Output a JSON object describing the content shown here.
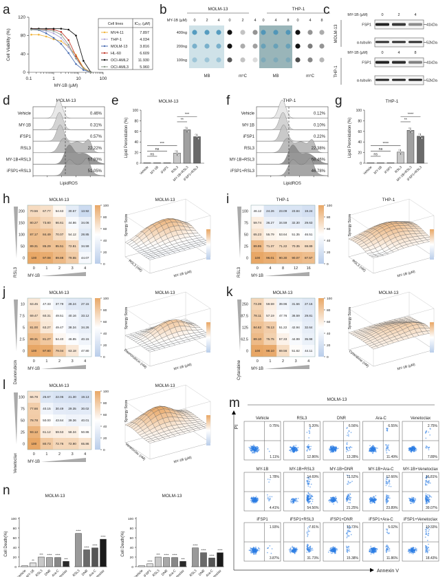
{
  "panel_letters": {
    "a": "a",
    "b": "b",
    "c": "c",
    "d": "d",
    "e": "e",
    "f": "f",
    "g": "g",
    "h": "h",
    "i": "i",
    "j": "j",
    "k": "k",
    "l": "l",
    "m": "m",
    "n": "n"
  },
  "chart_data": [
    {
      "type": "line",
      "panel": "a",
      "xlabel": "MY-1B (µM)",
      "ylabel": "Cell Viability (%)",
      "xscale": "log",
      "xlim": [
        0.1,
        100
      ],
      "ylim": [
        0,
        120
      ],
      "xticks": [
        "0.1",
        "1",
        "10",
        "100"
      ],
      "yticks": [
        "0",
        "40",
        "80",
        "120"
      ],
      "x": [
        0.125,
        0.25,
        0.5,
        1,
        2,
        4,
        8,
        16,
        32
      ],
      "legend": {
        "placement": "right",
        "headers": [
          "Cell lines",
          "IC₅₀ (µM)"
        ]
      },
      "series": [
        {
          "name": "MV4-11",
          "ic50": "7.897",
          "color": "#f0b43c",
          "values": [
            82,
            82,
            78,
            72,
            68,
            55,
            38,
            10,
            0
          ]
        },
        {
          "name": "THP-1",
          "ic50": "4.034",
          "color": "#b3aad8",
          "values": [
            95,
            93,
            90,
            85,
            75,
            55,
            30,
            8,
            0
          ]
        },
        {
          "name": "MOLM-13",
          "ic50": "3.816",
          "color": "#4b6fb3",
          "values": [
            93,
            92,
            85,
            75,
            62,
            42,
            18,
            5,
            0
          ]
        },
        {
          "name": "HL-60",
          "ic50": "6.609",
          "color": "#c0392b",
          "values": [
            95,
            95,
            94,
            93,
            88,
            70,
            35,
            8,
            0
          ]
        },
        {
          "name": "OCI-AML2",
          "ic50": "11.930",
          "color": "#111111",
          "values": [
            95,
            95,
            95,
            95,
            95,
            93,
            80,
            25,
            0
          ]
        },
        {
          "name": "OCI-AML3",
          "ic50": "5.960",
          "color": "#8a9a8a",
          "values": [
            93,
            93,
            92,
            90,
            82,
            60,
            30,
            8,
            0
          ]
        }
      ]
    },
    {
      "type": "bar",
      "panel": "e",
      "title": "MOLM-13",
      "ylabel": "Lipid Peroxidation (%)",
      "ylim": [
        0,
        100
      ],
      "yticks": [
        "0",
        "20",
        "40",
        "60",
        "80",
        "100"
      ],
      "categories": [
        "Vehicle",
        "MY-1B",
        "iFSP1",
        "RSL3",
        "MY-1B+RSL3",
        "iFSP1+RSL3"
      ],
      "values": [
        1,
        1,
        1,
        19,
        63,
        50
      ],
      "colors": [
        "#eeeeee",
        "#dddddd",
        "#cccccc",
        "#c8c8c8",
        "#a0a0a0",
        "#6a6a6a"
      ],
      "significance": [
        {
          "from": 0,
          "to": 1,
          "label": "ns"
        },
        {
          "from": 0,
          "to": 2,
          "label": "ns"
        },
        {
          "from": 0,
          "to": 3,
          "label": "***"
        },
        {
          "from": 3,
          "to": 4,
          "label": "**"
        },
        {
          "from": 3,
          "to": 5,
          "label": "***"
        }
      ]
    },
    {
      "type": "bar",
      "panel": "g",
      "title": "THP-1",
      "ylabel": "Lipid Peroxidation (%)",
      "ylim": [
        0,
        100
      ],
      "yticks": [
        "0",
        "20",
        "40",
        "60",
        "80",
        "100"
      ],
      "categories": [
        "Vehicle",
        "MY-1B",
        "iFSP1",
        "RSL3",
        "MY-1B+RSL3",
        "iFSP1+RSL3"
      ],
      "values": [
        1,
        1,
        1,
        21,
        62,
        51
      ],
      "colors": [
        "#eeeeee",
        "#dddddd",
        "#cccccc",
        "#c8c8c8",
        "#a0a0a0",
        "#6a6a6a"
      ],
      "significance": [
        {
          "from": 0,
          "to": 1,
          "label": "ns"
        },
        {
          "from": 0,
          "to": 2,
          "label": "ns"
        },
        {
          "from": 0,
          "to": 3,
          "label": "****"
        },
        {
          "from": 3,
          "to": 4,
          "label": "**"
        },
        {
          "from": 3,
          "to": 5,
          "label": "****"
        }
      ]
    },
    {
      "type": "heatmap",
      "panel": "h",
      "title": "MOLM-13",
      "xlabel": "MY-1B",
      "ylabel": "RSL3",
      "x": [
        "0",
        "1",
        "2",
        "3",
        "4"
      ],
      "y": [
        "200",
        "150",
        "100",
        "50",
        "0"
      ],
      "values": [
        [
          "70.56",
          "67.77",
          "54.63",
          "30.57",
          "13.92"
        ],
        [
          "80.27",
          "73.80",
          "66.61",
          "44.86",
          "34.06"
        ],
        [
          "87.17",
          "84.49",
          "70.07",
          "54.12",
          "28.85"
        ],
        [
          "89.31",
          "85.29",
          "85.51",
          "72.81",
          "34.59"
        ],
        [
          "100",
          "97.08",
          "89.88",
          "79.55",
          "44.07"
        ]
      ],
      "colorbar_ticks": [
        "0",
        "20",
        "40",
        "60",
        "80",
        "100"
      ],
      "surface": {
        "title": "MOLM-13",
        "zlabel": "Synergy Score",
        "xlabel": "MY-1B (µM)",
        "ylabel": "RSL3 (nM)"
      }
    },
    {
      "type": "heatmap",
      "panel": "i",
      "title": "THP-1",
      "xlabel": "MY-1B",
      "ylabel": "RSL3",
      "x": [
        "0",
        "4",
        "8",
        "12",
        "16"
      ],
      "y": [
        "100",
        "75",
        "50",
        "25",
        "0"
      ],
      "values": [
        [
          "46.12",
          "24.26",
          "23.09",
          "23.84",
          "19.24"
        ],
        [
          "59.74",
          "36.27",
          "34.59",
          "32.30",
          "29.63"
        ],
        [
          "65.23",
          "55.79",
          "53.64",
          "51.35",
          "46.51"
        ],
        [
          "89.95",
          "71.37",
          "71.22",
          "70.35",
          "69.89"
        ],
        [
          "100",
          "96.01",
          "90.30",
          "90.07",
          "87.57"
        ]
      ],
      "colorbar_ticks": [
        "0",
        "20",
        "40",
        "60",
        "80",
        "100"
      ],
      "surface": {
        "title": "THP-1",
        "zlabel": "Synergy Score",
        "xlabel": "MY-1B (µM)",
        "ylabel": "RSL3 (nM)"
      }
    },
    {
      "type": "heatmap",
      "panel": "j",
      "title": "MOLM-13",
      "xlabel": "MY-1B",
      "ylabel": "Daunorubicin",
      "x": [
        "0",
        "1",
        "2",
        "3",
        "4"
      ],
      "y": [
        "10",
        "7.5",
        "5",
        "2.5",
        "0"
      ],
      "values": [
        [
          "63.45",
          "47.33",
          "37.79",
          "28.24",
          "27.15"
        ],
        [
          "69.47",
          "60.31",
          "49.51",
          "40.16",
          "33.12"
        ],
        [
          "81.00",
          "63.27",
          "49.47",
          "38.34",
          "34.26"
        ],
        [
          "89.31",
          "81.27",
          "54.40",
          "46.85",
          "40.15"
        ],
        [
          "100",
          "97.80",
          "79.04",
          "63.18",
          "47.80"
        ]
      ],
      "colorbar_ticks": [
        "0",
        "20",
        "40",
        "60",
        "80",
        "100"
      ],
      "surface": {
        "title": "MOLM-13",
        "zlabel": "Synergy Score",
        "xlabel": "MY-1B (µM)",
        "ylabel": "Daunorubicin (nM)"
      }
    },
    {
      "type": "heatmap",
      "panel": "k",
      "title": "MOLM-13",
      "xlabel": "MY-1B",
      "ylabel": "Cytarabine",
      "x": [
        "0",
        "1",
        "2",
        "3",
        "4"
      ],
      "y": [
        "250",
        "187.5",
        "125",
        "62.5",
        "0"
      ],
      "values": [
        [
          "73.39",
          "59.59",
          "39.96",
          "31.56",
          "27.16"
        ],
        [
          "78.11",
          "57.19",
          "47.76",
          "36.59",
          "29.81"
        ],
        [
          "84.62",
          "78.13",
          "51.22",
          "42.94",
          "32.64"
        ],
        [
          "89.10",
          "75.75",
          "57.33",
          "44.99",
          "35.98"
        ],
        [
          "100",
          "98.10",
          "69.56",
          "51.62",
          "44.11"
        ]
      ],
      "colorbar_ticks": [
        "0",
        "20",
        "40",
        "60",
        "80",
        "100"
      ],
      "surface": {
        "title": "MOLM-13",
        "zlabel": "Synergy Score",
        "xlabel": "MY-1B (µM)",
        "ylabel": "Cytarabine (nM)"
      }
    },
    {
      "type": "heatmap",
      "panel": "l",
      "title": "MOLM-13",
      "xlabel": "MY-1B",
      "ylabel": "Venetoclax",
      "x": [
        "0",
        "1",
        "2",
        "3",
        "4"
      ],
      "y": [
        "100",
        "75",
        "50",
        "25",
        "0"
      ],
      "values": [
        [
          "66.78",
          "25.67",
          "22.06",
          "21.30",
          "19.13"
        ],
        [
          "77.66",
          "40.15",
          "30.49",
          "29.35",
          "30.02"
        ],
        [
          "78.78",
          "50.00",
          "43.64",
          "39.36",
          "40.01"
        ],
        [
          "93.12",
          "61.12",
          "59.53",
          "58.34",
          "50.86"
        ],
        [
          "100",
          "80.73",
          "72.76",
          "72.90",
          "65.86"
        ]
      ],
      "colorbar_ticks": [
        "0",
        "20",
        "40",
        "60",
        "80",
        "100"
      ],
      "surface": {
        "title": "MOLM-13",
        "zlabel": "Synergy Score",
        "xlabel": "MY-1B (µM)",
        "ylabel": "Venetoclax (nM)"
      }
    },
    {
      "type": "bar",
      "panel": "n-left",
      "title": "MOLM-13",
      "ylabel": "Cell Death(%)",
      "ylim": [
        0,
        100
      ],
      "yticks": [
        "0",
        "20",
        "40",
        "60",
        "80",
        "100"
      ],
      "categories": [
        "Vehicle",
        "MY-1B",
        "RSL3",
        "DNR",
        "Ara-C",
        "Venetoclax"
      ],
      "values": [
        2,
        8,
        20,
        19,
        19,
        11
      ],
      "stars": [
        "",
        "**",
        "***",
        "****",
        "****",
        "***"
      ],
      "colors": [
        "#f2f2f2",
        "#e0e0e0",
        "#c8c8c8",
        "#a8a8a8",
        "#888888",
        "#2a2a2a"
      ],
      "group": {
        "label": "+MY-1B",
        "categories": [
          "RSL3",
          "DNR",
          "Ara-C",
          "Venetoclax"
        ],
        "values": [
          69,
          35,
          39,
          57
        ],
        "stars": [
          "****",
          "****",
          "****",
          "****"
        ],
        "colors": [
          "#9a9a9a",
          "#6a6a6a",
          "#555555",
          "#1a1a1a"
        ]
      }
    },
    {
      "type": "bar",
      "panel": "n-right",
      "title": "MOLM-13",
      "ylabel": "Cell Death(%)",
      "ylim": [
        0,
        100
      ],
      "yticks": [
        "0",
        "20",
        "40",
        "60",
        "80",
        "100"
      ],
      "categories": [
        "Vehicle",
        "iFSP1",
        "RSL3",
        "DNR",
        "Ara-C",
        "Venetoclax"
      ],
      "values": [
        2,
        6,
        20,
        19,
        19,
        11
      ],
      "stars": [
        "",
        "****",
        "***",
        "****",
        "****",
        "***"
      ],
      "colors": [
        "#f2f2f2",
        "#e0e0e0",
        "#c8c8c8",
        "#a8a8a8",
        "#888888",
        "#2a2a2a"
      ],
      "group": {
        "label": "+iFSP1",
        "categories": [
          "RSL3",
          "DNR",
          "Ara-C",
          "Venetoclax"
        ],
        "values": [
          39,
          29,
          18,
          29
        ],
        "stars": [
          "****",
          "****",
          "****",
          "****"
        ],
        "colors": [
          "#9a9a9a",
          "#6a6a6a",
          "#555555",
          "#1a1a1a"
        ]
      }
    }
  ],
  "panel_b": {
    "dose_label": "MY-1B (µM)",
    "rows": [
      "400ng",
      "200ng",
      "100ng"
    ],
    "stain_labels": {
      "mb": "MB",
      "m5c": "m⁵C"
    },
    "mb_color": "#7fb0c4",
    "groups": [
      {
        "title": "MOLM-13",
        "doses": [
          "0",
          "2",
          "4"
        ],
        "mb_intensity": [
          [
            0.85,
            0.85,
            0.85
          ],
          [
            0.6,
            0.6,
            0.6
          ],
          [
            0.35,
            0.35,
            0.35
          ]
        ],
        "m5c_intensity": [
          [
            1,
            0.25,
            0.45
          ],
          [
            1,
            0.35,
            0.4
          ],
          [
            0.7,
            0.25,
            0.15
          ]
        ]
      },
      {
        "title": "THP-1",
        "doses": [
          "0",
          "4",
          "8"
        ],
        "mb_intensity": [
          [
            0.8,
            0.8,
            0.8
          ],
          [
            0.55,
            0.55,
            0.55
          ],
          [
            0.3,
            0.3,
            0.3
          ]
        ],
        "m5c_intensity": [
          [
            1,
            0.45,
            0.35
          ],
          [
            1,
            0.55,
            0.45
          ],
          [
            0.75,
            0.5,
            0.3
          ]
        ]
      }
    ]
  },
  "panel_c": {
    "blots": [
      {
        "cell_line": "MOLM-13",
        "dose_label": "MY-1B (µM)",
        "doses": [
          "0",
          "2",
          "4"
        ],
        "bands": [
          {
            "label": "FSP1",
            "size": "41kDa",
            "intensity": [
              1,
              0.9,
              0.5
            ]
          },
          {
            "label": "α-tubulin",
            "size": "52kDa",
            "intensity": [
              0.95,
              0.95,
              0.95
            ]
          }
        ]
      },
      {
        "cell_line": "THP-1",
        "dose_label": "MY-1B (µM)",
        "doses": [
          "0",
          "4",
          "8"
        ],
        "bands": [
          {
            "label": "FSP1",
            "size": "41kDa",
            "intensity": [
              1,
              0.95,
              0.55
            ]
          },
          {
            "label": "α-tubulin",
            "size": "52kDa",
            "intensity": [
              1,
              1,
              1
            ]
          }
        ]
      }
    ]
  },
  "panel_d": {
    "title": "MOLM-13",
    "xlabel": "LipidROS",
    "rows": [
      {
        "label": "Vehicle",
        "pct": "0.46%"
      },
      {
        "label": "MY-1B",
        "pct": "0.31%"
      },
      {
        "label": "iFSP1",
        "pct": "0.57%"
      },
      {
        "label": "RSL3",
        "pct": "22.22%"
      },
      {
        "label": "MY-1B+RSL3",
        "pct": "67.93%"
      },
      {
        "label": "iFSP1+RSL3",
        "pct": "51.05%"
      }
    ]
  },
  "panel_f": {
    "title": "THP-1",
    "xlabel": "LipidROS",
    "rows": [
      {
        "label": "Vehicle",
        "pct": "0.12%"
      },
      {
        "label": "MY-1B",
        "pct": "0.10%"
      },
      {
        "label": "iFSP1",
        "pct": "0.22%"
      },
      {
        "label": "RSL3",
        "pct": "22.38%"
      },
      {
        "label": "MY-1B+RSL3",
        "pct": "68.46%"
      },
      {
        "label": "iFSP1+RSL3",
        "pct": "46.78%"
      }
    ]
  },
  "panel_m": {
    "title": "MOLM-13",
    "ylabel": "PI",
    "xlabel": "Annexin V",
    "dot_color": "#2a7be4",
    "rows": [
      [
        {
          "label": "Vehicle",
          "ur": "0.75%",
          "lr": "1.11%"
        },
        {
          "label": "RSL3",
          "ur": "5.20%",
          "lr": "12.86%"
        },
        {
          "label": "DNR",
          "ur": "6.56%",
          "lr": "13.28%"
        },
        {
          "label": "Ara-C",
          "ur": "6.55%",
          "lr": "11.49%"
        },
        {
          "label": "Venetoclax",
          "ur": "2.75%",
          "lr": "7.89%"
        }
      ],
      [
        {
          "label": "MY-1B",
          "ur": "1.78%",
          "lr": "4.41%"
        },
        {
          "label": "MY-1B+RSL3",
          "ur": "14.69%",
          "lr": "54.56%"
        },
        {
          "label": "MY-1B+DNR",
          "ur": "11.52%",
          "lr": "21.25%"
        },
        {
          "label": "MY-1B+Ara-C",
          "ur": "12.66%",
          "lr": "23.89%"
        },
        {
          "label": "MY-1B+Venetoclax",
          "ur": "16.81%",
          "lr": "39.07%"
        }
      ],
      [
        {
          "label": "iFSP1",
          "ur": "1.93%",
          "lr": "3.87%"
        },
        {
          "label": "iFSP1+RSL3",
          "ur": "7.81%",
          "lr": "31.73%"
        },
        {
          "label": "iFSP1+DNR",
          "ur": "12.73%",
          "lr": "15.38%"
        },
        {
          "label": "iFSP1+Ara-C",
          "ur": "5.02%",
          "lr": "11.86%"
        },
        {
          "label": "iFSP1+Venetoclax",
          "ur": "10.33%",
          "lr": "18.43%"
        }
      ]
    ]
  },
  "colors": {
    "heat_low": "#b9cdea",
    "heat_mid": "#ffffff",
    "heat_high": "#e8a766"
  }
}
